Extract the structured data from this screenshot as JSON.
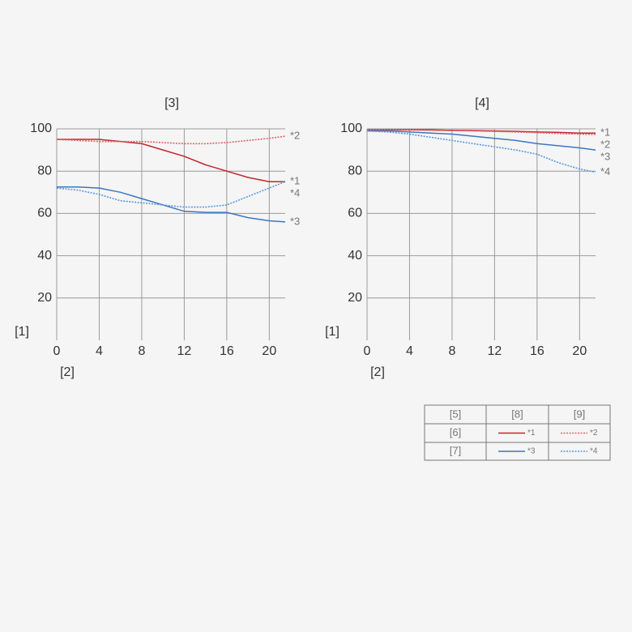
{
  "chart_data": [
    {
      "type": "line",
      "title": "[3]",
      "y_label": "[1]",
      "x_label": "[2]",
      "x": [
        0,
        2,
        4,
        6,
        8,
        10,
        12,
        14,
        16,
        18,
        20,
        21.5
      ],
      "xlim": [
        0,
        21.5
      ],
      "xticks": [
        0,
        4,
        8,
        12,
        16,
        20
      ],
      "ylim": [
        0,
        100
      ],
      "yticks": [
        20,
        40,
        60,
        80,
        100
      ],
      "grid": true,
      "series": [
        {
          "name": "*1",
          "color": "#c1272d",
          "style": "solid",
          "values": [
            95,
            95,
            95,
            94,
            93,
            90,
            87,
            83,
            80,
            77,
            75,
            75
          ]
        },
        {
          "name": "*2",
          "color": "#e0606a",
          "style": "dotted",
          "values": [
            95,
            94.5,
            94,
            94,
            94,
            93.5,
            93,
            93,
            93.5,
            94.5,
            95.5,
            96.5
          ]
        },
        {
          "name": "*3",
          "color": "#3a78bd",
          "style": "solid",
          "values": [
            72.5,
            72.5,
            72,
            70,
            67,
            64,
            61,
            60.5,
            60.5,
            58,
            56.5,
            56
          ]
        },
        {
          "name": "*4",
          "color": "#5a98dc",
          "style": "dotted",
          "values": [
            72,
            71,
            69,
            66,
            65,
            64,
            63,
            63,
            64,
            68,
            72,
            75
          ]
        }
      ]
    },
    {
      "type": "line",
      "title": "[4]",
      "y_label": "[1]",
      "x_label": "[2]",
      "x": [
        0,
        2,
        4,
        6,
        8,
        10,
        12,
        14,
        16,
        18,
        20,
        21.5
      ],
      "xlim": [
        0,
        21.5
      ],
      "xticks": [
        0,
        4,
        8,
        12,
        16,
        20
      ],
      "ylim": [
        0,
        100
      ],
      "yticks": [
        20,
        40,
        60,
        80,
        100
      ],
      "grid": true,
      "series": [
        {
          "name": "*1",
          "color": "#c1272d",
          "style": "solid",
          "values": [
            99.5,
            99.5,
            99.5,
            99.5,
            99.3,
            99.2,
            99,
            98.8,
            98.5,
            98.3,
            98,
            98
          ]
        },
        {
          "name": "*2",
          "color": "#e0606a",
          "style": "dotted",
          "values": [
            99.5,
            99.5,
            99.5,
            99.3,
            99.2,
            99,
            98.8,
            98.5,
            98.2,
            97.8,
            97.5,
            97.3
          ]
        },
        {
          "name": "*3",
          "color": "#3a78bd",
          "style": "solid",
          "values": [
            99,
            99,
            98.5,
            98,
            97.5,
            96.5,
            95.5,
            94.5,
            93,
            92,
            91,
            90
          ]
        },
        {
          "name": "*4",
          "color": "#5a98dc",
          "style": "dotted",
          "values": [
            99,
            98.5,
            97.5,
            96,
            94.5,
            93,
            91.5,
            90,
            88,
            84,
            81,
            79.5
          ]
        }
      ]
    }
  ],
  "legend_table": {
    "header": [
      "[5]",
      "[8]",
      "[9]"
    ],
    "rows": [
      "[6]",
      "[7]"
    ]
  }
}
